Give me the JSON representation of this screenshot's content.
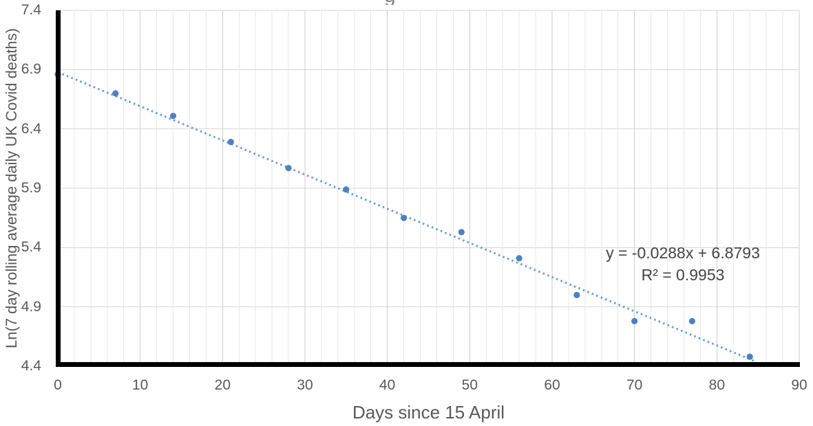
{
  "chart_data": {
    "type": "scatter",
    "title_fragment": "g",
    "xlabel": "Days since 15 April",
    "ylabel": "Ln(7 day rolling average daily UK Covid deaths)",
    "xlim": [
      0,
      90
    ],
    "ylim": [
      4.4,
      7.4
    ],
    "x_major_ticks": [
      "0",
      "10",
      "20",
      "30",
      "40",
      "50",
      "60",
      "70",
      "80",
      "90"
    ],
    "x_minor_grid_step": 2,
    "y_ticks": [
      "7.4",
      "6.9",
      "6.4",
      "5.9",
      "5.4",
      "4.9",
      "4.4"
    ],
    "grid": true,
    "legend": "none",
    "marker_shape": "circle",
    "x": [
      0,
      7,
      14,
      21,
      28,
      35,
      42,
      49,
      56,
      63,
      70,
      77,
      84
    ],
    "y": [
      6.86,
      6.7,
      6.51,
      6.29,
      6.07,
      5.89,
      5.65,
      5.53,
      5.31,
      5.0,
      4.78,
      4.78,
      4.48
    ],
    "trendline": {
      "style": "dotted",
      "slope": -0.0288,
      "intercept": 6.8793,
      "x_start": 0,
      "x_end": 84.6,
      "equation": "y = -0.0288x + 6.8793",
      "r_squared": "R² = 0.9953"
    },
    "colors": {
      "marker": "#4D82BE",
      "trendline": "#6F9ED4",
      "axis_line": "#000000",
      "h_gridline": "#D6D6D6",
      "v_major_gridline": "#CCCCCC",
      "v_minor_gridline": "#E7E7E7",
      "tick_label": "#595959",
      "axis_title": "#595959",
      "equation_text": "#444444",
      "title_fragment_color": "#808080"
    }
  }
}
